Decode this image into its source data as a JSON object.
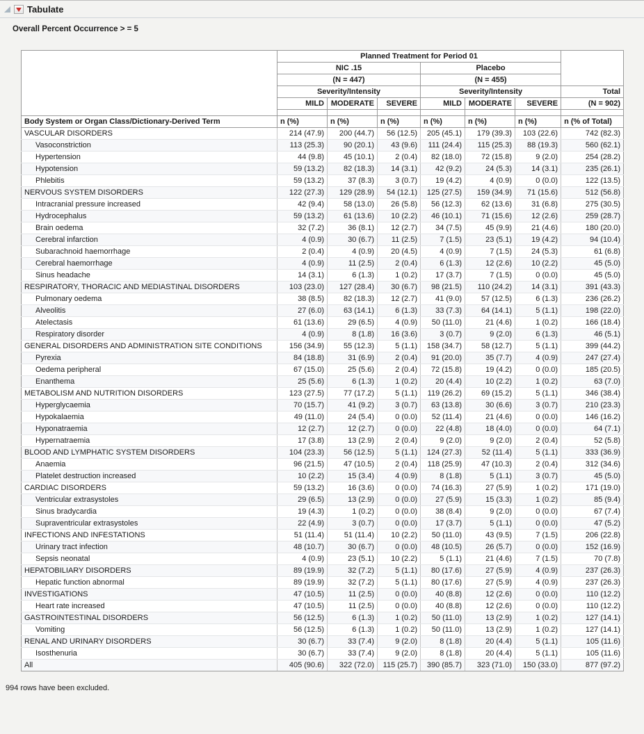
{
  "report": {
    "title": "Tabulate",
    "subtitle": "Overall Percent Occurrence > = 5",
    "footer_note": "994 rows have been excluded."
  },
  "icons": {
    "disclosure": "open-disclosure-triangle",
    "red_triangle": "red-triangle-menu"
  },
  "colors": {
    "red_triangle": "#c9302c",
    "page_bg": "#f3f3f1",
    "border_dark": "#9a9a9a",
    "border_light": "#e4e6e8"
  },
  "table": {
    "header": {
      "planned_treatment": "Planned Treatment for Period 01",
      "groups": [
        {
          "name": "NIC .15",
          "n": "(N = 447)"
        },
        {
          "name": "Placebo",
          "n": "(N = 455)"
        }
      ],
      "severity_label": "Severity/Intensity",
      "severity_levels": [
        "MILD",
        "MODERATE",
        "SEVERE"
      ],
      "total_label": "Total",
      "total_n": "(N = 902)",
      "row_label_header": "Body System or Organ Class/Dictionary-Derived Term",
      "stat_label": "n (%)",
      "total_stat_label": "n (% of Total)"
    },
    "rows": [
      {
        "label": "VASCULAR DISORDERS",
        "level": 0,
        "values": [
          "214 (47.9)",
          "200 (44.7)",
          "56 (12.5)",
          "205 (45.1)",
          "179 (39.3)",
          "103 (22.6)",
          "742 (82.3)"
        ]
      },
      {
        "label": "Vasoconstriction",
        "level": 1,
        "values": [
          "113 (25.3)",
          "90 (20.1)",
          "43 (9.6)",
          "111 (24.4)",
          "115 (25.3)",
          "88 (19.3)",
          "560 (62.1)"
        ]
      },
      {
        "label": "Hypertension",
        "level": 1,
        "values": [
          "44 (9.8)",
          "45 (10.1)",
          "2 (0.4)",
          "82 (18.0)",
          "72 (15.8)",
          "9 (2.0)",
          "254 (28.2)"
        ]
      },
      {
        "label": "Hypotension",
        "level": 1,
        "values": [
          "59 (13.2)",
          "82 (18.3)",
          "14 (3.1)",
          "42 (9.2)",
          "24 (5.3)",
          "14 (3.1)",
          "235 (26.1)"
        ]
      },
      {
        "label": "Phlebitis",
        "level": 1,
        "values": [
          "59 (13.2)",
          "37 (8.3)",
          "3 (0.7)",
          "19 (4.2)",
          "4 (0.9)",
          "0 (0.0)",
          "122 (13.5)"
        ]
      },
      {
        "label": "NERVOUS SYSTEM DISORDERS",
        "level": 0,
        "values": [
          "122 (27.3)",
          "129 (28.9)",
          "54 (12.1)",
          "125 (27.5)",
          "159 (34.9)",
          "71 (15.6)",
          "512 (56.8)"
        ]
      },
      {
        "label": "Intracranial pressure increased",
        "level": 1,
        "values": [
          "42 (9.4)",
          "58 (13.0)",
          "26 (5.8)",
          "56 (12.3)",
          "62 (13.6)",
          "31 (6.8)",
          "275 (30.5)"
        ]
      },
      {
        "label": "Hydrocephalus",
        "level": 1,
        "values": [
          "59 (13.2)",
          "61 (13.6)",
          "10 (2.2)",
          "46 (10.1)",
          "71 (15.6)",
          "12 (2.6)",
          "259 (28.7)"
        ]
      },
      {
        "label": "Brain oedema",
        "level": 1,
        "values": [
          "32 (7.2)",
          "36 (8.1)",
          "12 (2.7)",
          "34 (7.5)",
          "45 (9.9)",
          "21 (4.6)",
          "180 (20.0)"
        ]
      },
      {
        "label": "Cerebral infarction",
        "level": 1,
        "values": [
          "4 (0.9)",
          "30 (6.7)",
          "11 (2.5)",
          "7 (1.5)",
          "23 (5.1)",
          "19 (4.2)",
          "94 (10.4)"
        ]
      },
      {
        "label": "Subarachnoid haemorrhage",
        "level": 1,
        "values": [
          "2 (0.4)",
          "4 (0.9)",
          "20 (4.5)",
          "4 (0.9)",
          "7 (1.5)",
          "24 (5.3)",
          "61 (6.8)"
        ]
      },
      {
        "label": "Cerebral haemorrhage",
        "level": 1,
        "values": [
          "4 (0.9)",
          "11 (2.5)",
          "2 (0.4)",
          "6 (1.3)",
          "12 (2.6)",
          "10 (2.2)",
          "45 (5.0)"
        ]
      },
      {
        "label": "Sinus headache",
        "level": 1,
        "values": [
          "14 (3.1)",
          "6 (1.3)",
          "1 (0.2)",
          "17 (3.7)",
          "7 (1.5)",
          "0 (0.0)",
          "45 (5.0)"
        ]
      },
      {
        "label": "RESPIRATORY, THORACIC AND MEDIASTINAL DISORDERS",
        "level": 0,
        "values": [
          "103 (23.0)",
          "127 (28.4)",
          "30 (6.7)",
          "98 (21.5)",
          "110 (24.2)",
          "14 (3.1)",
          "391 (43.3)"
        ]
      },
      {
        "label": "Pulmonary oedema",
        "level": 1,
        "values": [
          "38 (8.5)",
          "82 (18.3)",
          "12 (2.7)",
          "41 (9.0)",
          "57 (12.5)",
          "6 (1.3)",
          "236 (26.2)"
        ]
      },
      {
        "label": "Alveolitis",
        "level": 1,
        "values": [
          "27 (6.0)",
          "63 (14.1)",
          "6 (1.3)",
          "33 (7.3)",
          "64 (14.1)",
          "5 (1.1)",
          "198 (22.0)"
        ]
      },
      {
        "label": "Atelectasis",
        "level": 1,
        "values": [
          "61 (13.6)",
          "29 (6.5)",
          "4 (0.9)",
          "50 (11.0)",
          "21 (4.6)",
          "1 (0.2)",
          "166 (18.4)"
        ]
      },
      {
        "label": "Respiratory disorder",
        "level": 1,
        "values": [
          "4 (0.9)",
          "8 (1.8)",
          "16 (3.6)",
          "3 (0.7)",
          "9 (2.0)",
          "6 (1.3)",
          "46 (5.1)"
        ]
      },
      {
        "label": "GENERAL DISORDERS AND ADMINISTRATION SITE CONDITIONS",
        "level": 0,
        "values": [
          "156 (34.9)",
          "55 (12.3)",
          "5 (1.1)",
          "158 (34.7)",
          "58 (12.7)",
          "5 (1.1)",
          "399 (44.2)"
        ]
      },
      {
        "label": "Pyrexia",
        "level": 1,
        "values": [
          "84 (18.8)",
          "31 (6.9)",
          "2 (0.4)",
          "91 (20.0)",
          "35 (7.7)",
          "4 (0.9)",
          "247 (27.4)"
        ]
      },
      {
        "label": "Oedema peripheral",
        "level": 1,
        "values": [
          "67 (15.0)",
          "25 (5.6)",
          "2 (0.4)",
          "72 (15.8)",
          "19 (4.2)",
          "0 (0.0)",
          "185 (20.5)"
        ]
      },
      {
        "label": "Enanthema",
        "level": 1,
        "values": [
          "25 (5.6)",
          "6 (1.3)",
          "1 (0.2)",
          "20 (4.4)",
          "10 (2.2)",
          "1 (0.2)",
          "63 (7.0)"
        ]
      },
      {
        "label": "METABOLISM AND NUTRITION DISORDERS",
        "level": 0,
        "values": [
          "123 (27.5)",
          "77 (17.2)",
          "5 (1.1)",
          "119 (26.2)",
          "69 (15.2)",
          "5 (1.1)",
          "346 (38.4)"
        ]
      },
      {
        "label": "Hyperglycaemia",
        "level": 1,
        "values": [
          "70 (15.7)",
          "41 (9.2)",
          "3 (0.7)",
          "63 (13.8)",
          "30 (6.6)",
          "3 (0.7)",
          "210 (23.3)"
        ]
      },
      {
        "label": "Hypokalaemia",
        "level": 1,
        "values": [
          "49 (11.0)",
          "24 (5.4)",
          "0 (0.0)",
          "52 (11.4)",
          "21 (4.6)",
          "0 (0.0)",
          "146 (16.2)"
        ]
      },
      {
        "label": "Hyponatraemia",
        "level": 1,
        "values": [
          "12 (2.7)",
          "12 (2.7)",
          "0 (0.0)",
          "22 (4.8)",
          "18 (4.0)",
          "0 (0.0)",
          "64 (7.1)"
        ]
      },
      {
        "label": "Hypernatraemia",
        "level": 1,
        "values": [
          "17 (3.8)",
          "13 (2.9)",
          "2 (0.4)",
          "9 (2.0)",
          "9 (2.0)",
          "2 (0.4)",
          "52 (5.8)"
        ]
      },
      {
        "label": "BLOOD AND LYMPHATIC SYSTEM DISORDERS",
        "level": 0,
        "values": [
          "104 (23.3)",
          "56 (12.5)",
          "5 (1.1)",
          "124 (27.3)",
          "52 (11.4)",
          "5 (1.1)",
          "333 (36.9)"
        ]
      },
      {
        "label": "Anaemia",
        "level": 1,
        "values": [
          "96 (21.5)",
          "47 (10.5)",
          "2 (0.4)",
          "118 (25.9)",
          "47 (10.3)",
          "2 (0.4)",
          "312 (34.6)"
        ]
      },
      {
        "label": "Platelet destruction increased",
        "level": 1,
        "values": [
          "10 (2.2)",
          "15 (3.4)",
          "4 (0.9)",
          "8 (1.8)",
          "5 (1.1)",
          "3 (0.7)",
          "45 (5.0)"
        ]
      },
      {
        "label": "CARDIAC DISORDERS",
        "level": 0,
        "values": [
          "59 (13.2)",
          "16 (3.6)",
          "0 (0.0)",
          "74 (16.3)",
          "27 (5.9)",
          "1 (0.2)",
          "171 (19.0)"
        ]
      },
      {
        "label": "Ventricular extrasystoles",
        "level": 1,
        "values": [
          "29 (6.5)",
          "13 (2.9)",
          "0 (0.0)",
          "27 (5.9)",
          "15 (3.3)",
          "1 (0.2)",
          "85 (9.4)"
        ]
      },
      {
        "label": "Sinus bradycardia",
        "level": 1,
        "values": [
          "19 (4.3)",
          "1 (0.2)",
          "0 (0.0)",
          "38 (8.4)",
          "9 (2.0)",
          "0 (0.0)",
          "67 (7.4)"
        ]
      },
      {
        "label": "Supraventricular extrasystoles",
        "level": 1,
        "values": [
          "22 (4.9)",
          "3 (0.7)",
          "0 (0.0)",
          "17 (3.7)",
          "5 (1.1)",
          "0 (0.0)",
          "47 (5.2)"
        ]
      },
      {
        "label": "INFECTIONS AND INFESTATIONS",
        "level": 0,
        "values": [
          "51 (11.4)",
          "51 (11.4)",
          "10 (2.2)",
          "50 (11.0)",
          "43 (9.5)",
          "7 (1.5)",
          "206 (22.8)"
        ]
      },
      {
        "label": "Urinary tract infection",
        "level": 1,
        "values": [
          "48 (10.7)",
          "30 (6.7)",
          "0 (0.0)",
          "48 (10.5)",
          "26 (5.7)",
          "0 (0.0)",
          "152 (16.9)"
        ]
      },
      {
        "label": "Sepsis neonatal",
        "level": 1,
        "values": [
          "4 (0.9)",
          "23 (5.1)",
          "10 (2.2)",
          "5 (1.1)",
          "21 (4.6)",
          "7 (1.5)",
          "70 (7.8)"
        ]
      },
      {
        "label": "HEPATOBILIARY DISORDERS",
        "level": 0,
        "values": [
          "89 (19.9)",
          "32 (7.2)",
          "5 (1.1)",
          "80 (17.6)",
          "27 (5.9)",
          "4 (0.9)",
          "237 (26.3)"
        ]
      },
      {
        "label": "Hepatic function abnormal",
        "level": 1,
        "values": [
          "89 (19.9)",
          "32 (7.2)",
          "5 (1.1)",
          "80 (17.6)",
          "27 (5.9)",
          "4 (0.9)",
          "237 (26.3)"
        ]
      },
      {
        "label": "INVESTIGATIONS",
        "level": 0,
        "values": [
          "47 (10.5)",
          "11 (2.5)",
          "0 (0.0)",
          "40 (8.8)",
          "12 (2.6)",
          "0 (0.0)",
          "110 (12.2)"
        ]
      },
      {
        "label": "Heart rate increased",
        "level": 1,
        "values": [
          "47 (10.5)",
          "11 (2.5)",
          "0 (0.0)",
          "40 (8.8)",
          "12 (2.6)",
          "0 (0.0)",
          "110 (12.2)"
        ]
      },
      {
        "label": "GASTROINTESTINAL DISORDERS",
        "level": 0,
        "values": [
          "56 (12.5)",
          "6 (1.3)",
          "1 (0.2)",
          "50 (11.0)",
          "13 (2.9)",
          "1 (0.2)",
          "127 (14.1)"
        ]
      },
      {
        "label": "Vomiting",
        "level": 1,
        "values": [
          "56 (12.5)",
          "6 (1.3)",
          "1 (0.2)",
          "50 (11.0)",
          "13 (2.9)",
          "1 (0.2)",
          "127 (14.1)"
        ]
      },
      {
        "label": "RENAL AND URINARY DISORDERS",
        "level": 0,
        "values": [
          "30 (6.7)",
          "33 (7.4)",
          "9 (2.0)",
          "8 (1.8)",
          "20 (4.4)",
          "5 (1.1)",
          "105 (11.6)"
        ]
      },
      {
        "label": "Isosthenuria",
        "level": 1,
        "values": [
          "30 (6.7)",
          "33 (7.4)",
          "9 (2.0)",
          "8 (1.8)",
          "20 (4.4)",
          "5 (1.1)",
          "105 (11.6)"
        ]
      },
      {
        "label": "All",
        "level": 0,
        "values": [
          "405 (90.6)",
          "322 (72.0)",
          "115 (25.7)",
          "390 (85.7)",
          "323 (71.0)",
          "150 (33.0)",
          "877 (97.2)"
        ]
      }
    ]
  }
}
